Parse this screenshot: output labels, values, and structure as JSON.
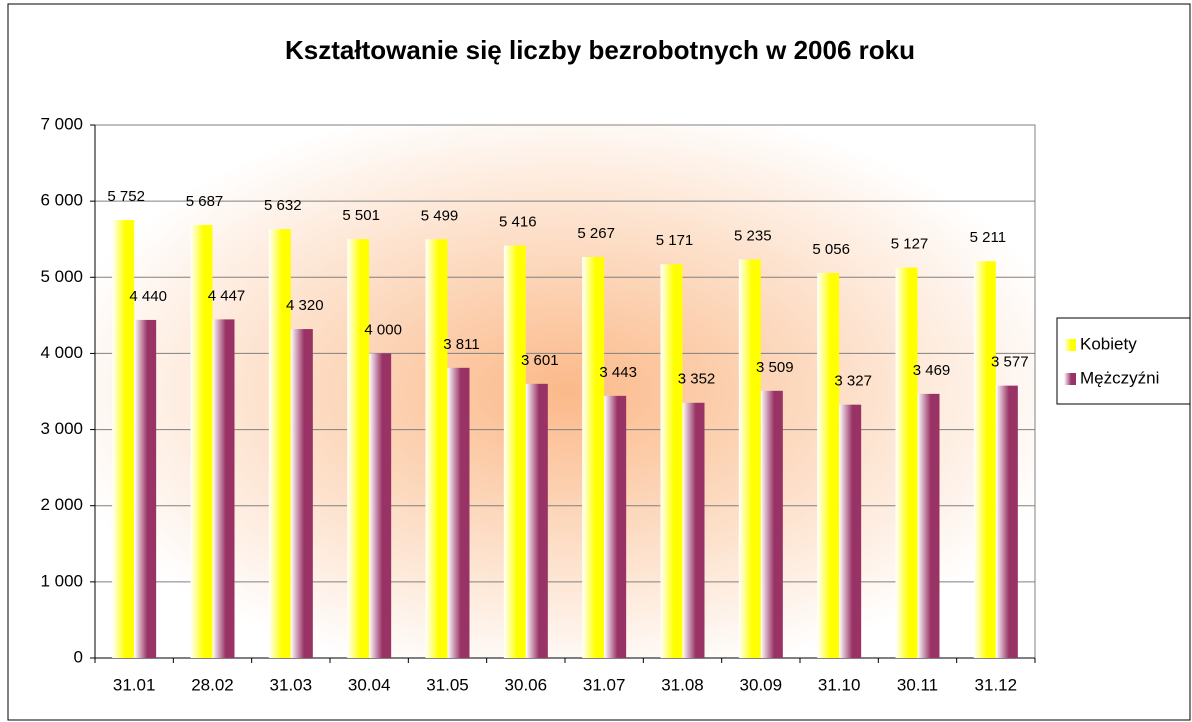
{
  "chart_data": {
    "type": "bar",
    "title": "Kształtowanie się liczby bezrobotnych w 2006 roku",
    "categories": [
      "31.01",
      "28.02",
      "31.03",
      "30.04",
      "31.05",
      "30.06",
      "31.07",
      "31.08",
      "30.09",
      "31.10",
      "30.11",
      "31.12"
    ],
    "series": [
      {
        "name": "Kobiety",
        "color": "#ffff00",
        "values": [
          5752,
          5687,
          5632,
          5501,
          5499,
          5416,
          5267,
          5171,
          5235,
          5056,
          5127,
          5211
        ],
        "value_labels": [
          "5 752",
          "5 687",
          "5 632",
          "5 501",
          "5 499",
          "5 416",
          "5 267",
          "5 171",
          "5 235",
          "5 056",
          "5 127",
          "5 211"
        ]
      },
      {
        "name": "Mężczyźni",
        "color": "#993366",
        "values": [
          4440,
          4447,
          4320,
          4000,
          3811,
          3601,
          3443,
          3352,
          3509,
          3327,
          3469,
          3577
        ],
        "value_labels": [
          "4 440",
          "4 447",
          "4 320",
          "4 000",
          "3 811",
          "3 601",
          "3 443",
          "3 352",
          "3 509",
          "3 327",
          "3 469",
          "3 577"
        ]
      }
    ],
    "ylim": [
      0,
      7000
    ],
    "yticks": [
      0,
      {
        "value": 1000,
        "label": "1 000"
      },
      {
        "value": 2000,
        "label": "2 000"
      },
      {
        "value": 3000,
        "label": "3 000"
      },
      {
        "value": 4000,
        "label": "4 000"
      },
      {
        "value": 5000,
        "label": "5 000"
      },
      {
        "value": 6000,
        "label": "6 000"
      },
      {
        "value": 7000,
        "label": "7 000"
      }
    ],
    "grid": true,
    "legend": "right"
  }
}
